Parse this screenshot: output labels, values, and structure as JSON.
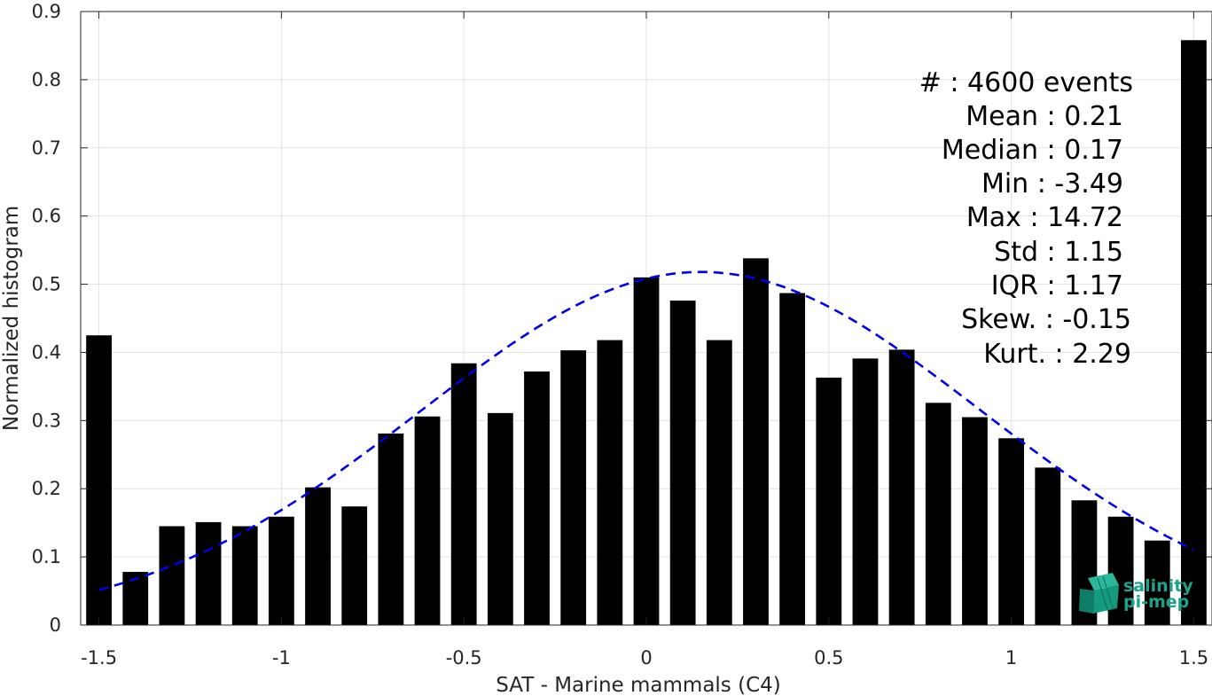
{
  "chart_data": {
    "type": "bar",
    "xlabel": "SAT - Marine mammals (C4)",
    "ylabel": "Normalized histogram",
    "xlim": [
      -1.55,
      1.55
    ],
    "ylim": [
      0,
      0.9
    ],
    "xticks": [
      -1.5,
      -1,
      -0.5,
      0,
      0.5,
      1,
      1.5
    ],
    "xtick_labels": [
      "-1.5",
      "-1",
      "-0.5",
      "0",
      "0.5",
      "1",
      "1.5"
    ],
    "yticks": [
      0,
      0.1,
      0.2,
      0.3,
      0.4,
      0.5,
      0.6,
      0.7,
      0.8,
      0.9
    ],
    "ytick_labels": [
      "0",
      "0.1",
      "0.2",
      "0.3",
      "0.4",
      "0.5",
      "0.6",
      "0.7",
      "0.8",
      "0.9"
    ],
    "grid": true,
    "bar_color": "#000000",
    "bar_width": 0.07,
    "x": [
      -1.5,
      -1.4,
      -1.3,
      -1.2,
      -1.1,
      -1.0,
      -0.9,
      -0.8,
      -0.7,
      -0.6,
      -0.5,
      -0.4,
      -0.3,
      -0.2,
      -0.1,
      0.0,
      0.1,
      0.2,
      0.3,
      0.4,
      0.5,
      0.6,
      0.7,
      0.8,
      0.9,
      1.0,
      1.1,
      1.2,
      1.3,
      1.4,
      1.5
    ],
    "values": [
      0.425,
      0.078,
      0.145,
      0.151,
      0.145,
      0.159,
      0.202,
      0.174,
      0.281,
      0.306,
      0.384,
      0.311,
      0.372,
      0.403,
      0.418,
      0.51,
      0.476,
      0.418,
      0.538,
      0.487,
      0.363,
      0.391,
      0.404,
      0.326,
      0.305,
      0.274,
      0.231,
      0.183,
      0.159,
      0.124,
      0.858
    ],
    "fit_curve": {
      "style": "dashed",
      "color": "#0000e6",
      "mean": 0.15,
      "std": 0.768,
      "peak": 0.518,
      "x_range": [
        -1.5,
        1.5
      ]
    },
    "annotations": [
      "#  : 4600 events",
      "Mean : 0.21",
      "Median : 0.17",
      "Min : -3.49",
      "Max : 14.72",
      "Std : 1.15",
      "IQR : 1.17",
      "Skew. : -0.15",
      "Kurt. : 2.29"
    ]
  },
  "logo": {
    "line1": "salinity",
    "line2": "pi-mep",
    "color": "#1aa58a"
  }
}
